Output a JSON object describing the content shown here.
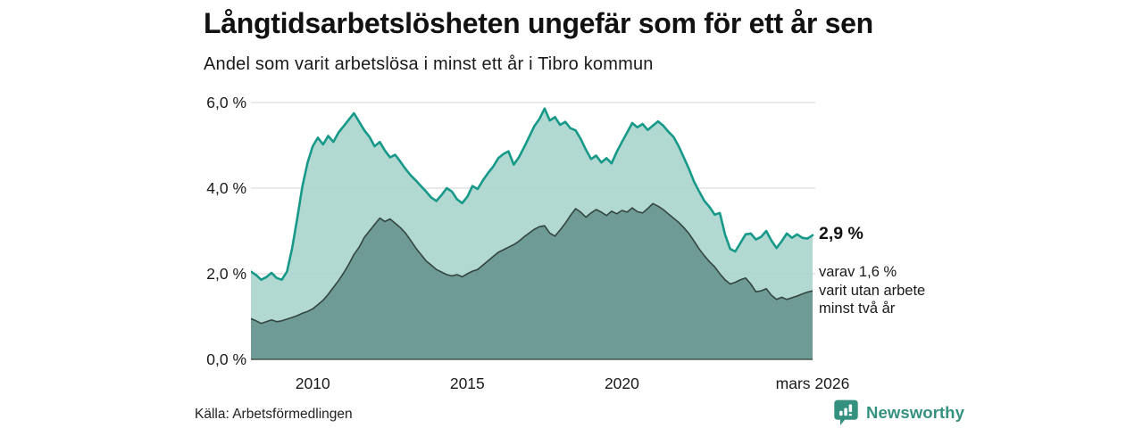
{
  "header": {
    "title": "Långtidsarbetslösheten ungefär som för ett år sen",
    "subtitle": "Andel som varit arbetslösa i minst ett år i Tibro kommun"
  },
  "chart_data": {
    "type": "area",
    "title": "Långtidsarbetslösheten ungefär som för ett år sen",
    "subtitle": "Andel som varit arbetslösa i minst ett år i Tibro kommun",
    "x_unit": "decimal_year",
    "x_range": [
      2008.0,
      2026.17
    ],
    "x_step": 0.1667,
    "ylim": [
      0,
      6.3
    ],
    "grid": "horizontal",
    "y_ticks": [
      {
        "value": 6,
        "label": "6,0 %"
      },
      {
        "value": 4,
        "label": "4,0 %"
      },
      {
        "value": 2,
        "label": "2,0 %"
      },
      {
        "value": 0,
        "label": "0,0 %"
      }
    ],
    "x_ticks": [
      {
        "value": 2010,
        "label": "2010"
      },
      {
        "value": 2015,
        "label": "2015"
      },
      {
        "value": 2020,
        "label": "2020"
      },
      {
        "value": 2026.17,
        "label": "mars 2026"
      }
    ],
    "series": [
      {
        "name": "Andel arbetslösa minst ett år",
        "end_value": 2.9,
        "values": [
          2.05,
          1.97,
          1.86,
          1.92,
          2.02,
          1.9,
          1.86,
          2.05,
          2.6,
          3.3,
          4.05,
          4.6,
          4.98,
          5.18,
          5.02,
          5.22,
          5.08,
          5.3,
          5.45,
          5.6,
          5.75,
          5.55,
          5.35,
          5.2,
          4.98,
          5.08,
          4.88,
          4.72,
          4.78,
          4.62,
          4.45,
          4.3,
          4.18,
          4.05,
          3.92,
          3.78,
          3.7,
          3.84,
          4.0,
          3.92,
          3.74,
          3.65,
          3.8,
          4.05,
          3.98,
          4.18,
          4.35,
          4.5,
          4.7,
          4.8,
          4.86,
          4.55,
          4.72,
          4.95,
          5.2,
          5.45,
          5.62,
          5.86,
          5.58,
          5.66,
          5.48,
          5.55,
          5.4,
          5.35,
          5.15,
          4.9,
          4.68,
          4.76,
          4.6,
          4.7,
          4.58,
          4.85,
          5.08,
          5.3,
          5.52,
          5.42,
          5.5,
          5.36,
          5.46,
          5.56,
          5.46,
          5.32,
          5.2,
          4.98,
          4.72,
          4.45,
          4.15,
          3.92,
          3.7,
          3.56,
          3.38,
          3.42,
          2.92,
          2.58,
          2.52,
          2.72,
          2.92,
          2.94,
          2.8,
          2.86,
          3.0,
          2.78,
          2.6,
          2.76,
          2.94,
          2.84,
          2.92,
          2.84,
          2.82,
          2.9
        ]
      },
      {
        "name": "varav arbetslösa minst två år",
        "end_value": 1.6,
        "values": [
          0.95,
          0.9,
          0.84,
          0.88,
          0.92,
          0.88,
          0.9,
          0.94,
          0.98,
          1.02,
          1.08,
          1.12,
          1.18,
          1.28,
          1.38,
          1.52,
          1.68,
          1.84,
          2.02,
          2.22,
          2.45,
          2.62,
          2.85,
          3.0,
          3.15,
          3.3,
          3.22,
          3.28,
          3.18,
          3.08,
          2.95,
          2.78,
          2.6,
          2.45,
          2.3,
          2.2,
          2.1,
          2.04,
          1.98,
          1.95,
          1.98,
          1.93,
          2.0,
          2.06,
          2.1,
          2.2,
          2.3,
          2.4,
          2.5,
          2.56,
          2.62,
          2.68,
          2.76,
          2.86,
          2.95,
          3.04,
          3.1,
          3.12,
          2.95,
          2.88,
          3.02,
          3.18,
          3.36,
          3.52,
          3.44,
          3.32,
          3.42,
          3.5,
          3.44,
          3.36,
          3.46,
          3.4,
          3.48,
          3.44,
          3.54,
          3.45,
          3.42,
          3.52,
          3.64,
          3.58,
          3.5,
          3.4,
          3.3,
          3.2,
          3.08,
          2.94,
          2.76,
          2.58,
          2.42,
          2.28,
          2.16,
          2.0,
          1.86,
          1.76,
          1.8,
          1.86,
          1.9,
          1.76,
          1.58,
          1.6,
          1.65,
          1.5,
          1.4,
          1.45,
          1.4,
          1.44,
          1.48,
          1.53,
          1.57,
          1.6
        ]
      }
    ],
    "annotations": {
      "total": {
        "value": 2.9,
        "label": "2,9 %"
      },
      "two_year": {
        "value": 1.6,
        "lines": [
          "varav 1,6 %",
          "varit utan arbete",
          "minst två år"
        ]
      }
    }
  },
  "footer": {
    "source": "Källa: Arbetsförmedlingen",
    "brand": "Newsworthy"
  },
  "colors": {
    "accent_line": "#17998a",
    "fill_total": "#a9d4cc",
    "fill_two_year": "#6f9b96",
    "line_two_year": "#33453f",
    "baseline": "#44544e",
    "grid": "#dcdcdc",
    "brand": "#35917f",
    "text": "#1a1a1a"
  }
}
